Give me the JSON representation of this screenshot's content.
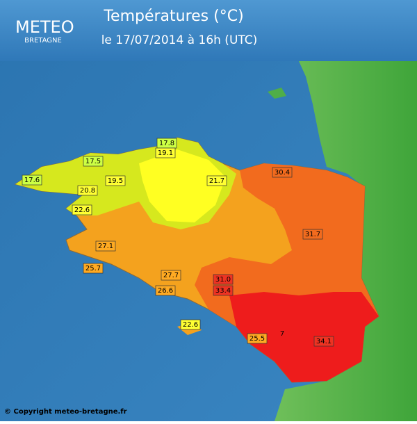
{
  "header": {
    "logo": "METEO",
    "logo_sub": "BRETAGNE",
    "title": "Températures (°C)",
    "subtitle": "le 17/07/2014 à 16h (UTC)"
  },
  "labels": [
    "17.8",
    "19.1",
    "17.5",
    "19.5",
    "21.7",
    "30.4",
    "17.6",
    "20.8",
    "22.6",
    "31.7",
    "27.1",
    "25.7",
    "27.7",
    "31.0",
    "26.6",
    "33.4",
    "22.6",
    "34.1",
    "25.5",
    "7"
  ],
  "footer": "© Copyright meteo-bretagne.fr"
}
